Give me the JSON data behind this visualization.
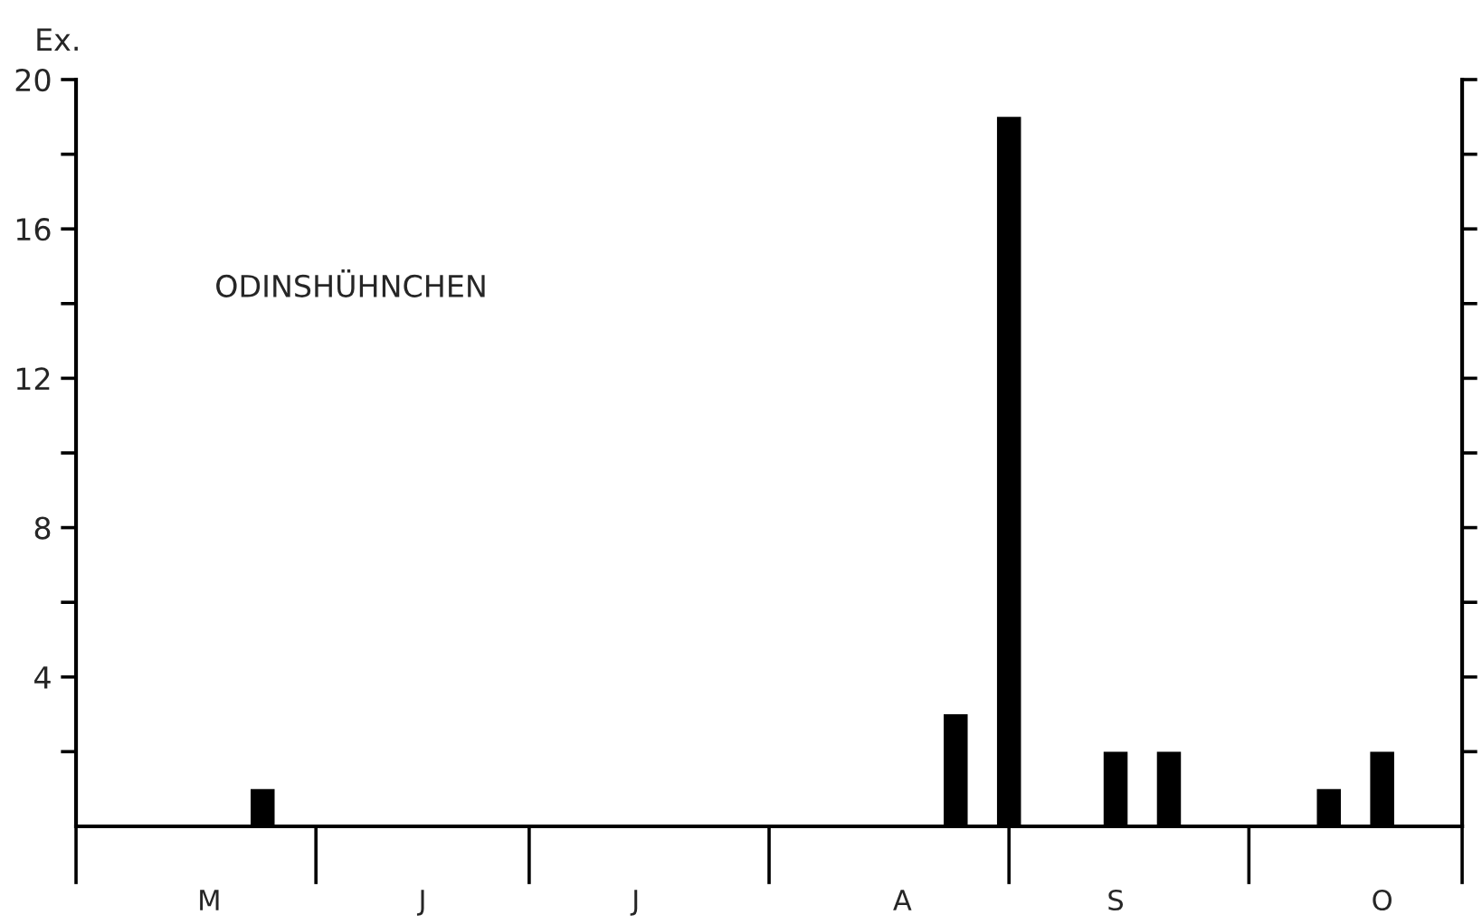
{
  "chart_data": {
    "type": "bar",
    "title": "ODINSHÜHNCHEN",
    "ylabel": "Ex.",
    "categories": [
      null,
      null,
      "M",
      null,
      null,
      null,
      "J",
      null,
      null,
      null,
      "J",
      null,
      null,
      null,
      null,
      "A",
      null,
      null,
      null,
      "S",
      null,
      null,
      null,
      null,
      "O",
      null
    ],
    "values": [
      0,
      0,
      0,
      1,
      0,
      0,
      0,
      0,
      0,
      0,
      0,
      0,
      0,
      0,
      0,
      0,
      3,
      19,
      0,
      2,
      2,
      0,
      0,
      1,
      2,
      0
    ],
    "color": "#000000",
    "ylim": [
      0,
      20
    ],
    "yticks": [
      {
        "value": 2,
        "label": null
      },
      4,
      {
        "value": 6,
        "label": null
      },
      8,
      {
        "value": 10,
        "label": null
      },
      12,
      {
        "value": 14,
        "label": null
      },
      16,
      {
        "value": 18,
        "label": null
      },
      20
    ],
    "grid": false
  }
}
